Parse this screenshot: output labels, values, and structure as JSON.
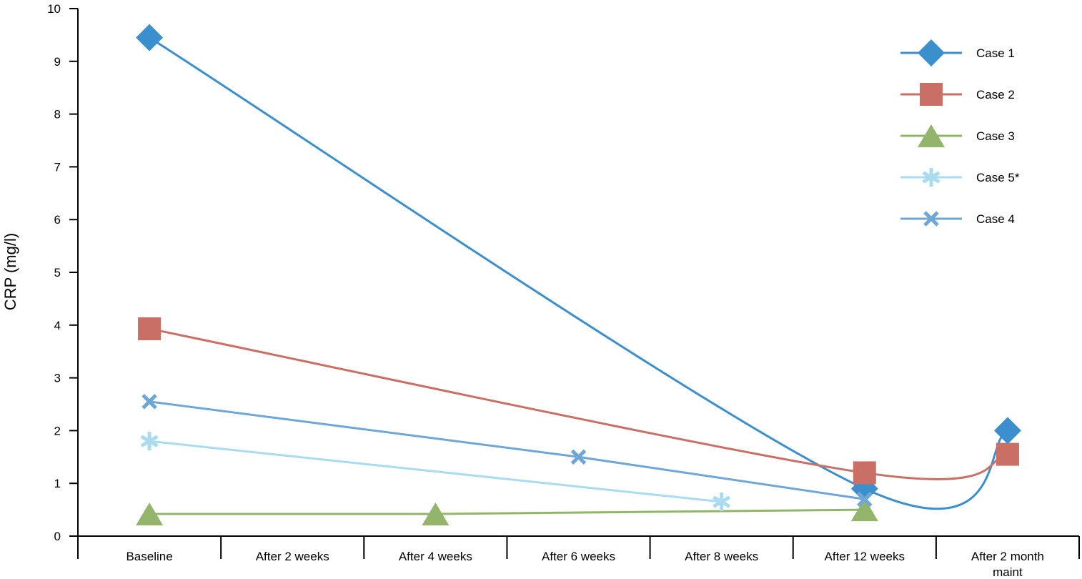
{
  "chart_data": {
    "type": "line",
    "ylabel": "CRP (mg/l)",
    "xlabel": "",
    "ylim": [
      0,
      10
    ],
    "yticks": [
      0,
      1,
      2,
      3,
      4,
      5,
      6,
      7,
      8,
      9,
      10
    ],
    "categories": [
      [
        "Baseline"
      ],
      [
        "After 2 weeks"
      ],
      [
        "After 4 weeks"
      ],
      [
        "After 6 weeks"
      ],
      [
        "After 8 weeks"
      ],
      [
        "After 12 weeks"
      ],
      [
        "After 2 month",
        "maint"
      ]
    ],
    "grid": false,
    "legend_position": "top-right",
    "series": [
      {
        "name": "Case 1",
        "color": "#3a8fcc",
        "marker": "diamond",
        "smooth": true,
        "points": [
          [
            0,
            9.45
          ],
          [
            5,
            0.9
          ],
          [
            6,
            2.0
          ]
        ]
      },
      {
        "name": "Case 2",
        "color": "#c96f66",
        "marker": "square",
        "smooth": true,
        "points": [
          [
            0,
            3.93
          ],
          [
            5,
            1.2
          ],
          [
            6,
            1.55
          ]
        ]
      },
      {
        "name": "Case 3",
        "color": "#93b56b",
        "marker": "triangle",
        "smooth": false,
        "points": [
          [
            0,
            0.42
          ],
          [
            2,
            0.42
          ],
          [
            5,
            0.5
          ]
        ]
      },
      {
        "name": "Case 5*",
        "color": "#a9dcef",
        "marker": "asterisk",
        "smooth": false,
        "points": [
          [
            0,
            1.8
          ],
          [
            4,
            0.65
          ]
        ]
      },
      {
        "name": "Case 4",
        "color": "#6ea6d6",
        "marker": "x",
        "smooth": false,
        "points": [
          [
            0,
            2.55
          ],
          [
            3,
            1.5
          ],
          [
            5,
            0.7
          ]
        ]
      }
    ]
  }
}
